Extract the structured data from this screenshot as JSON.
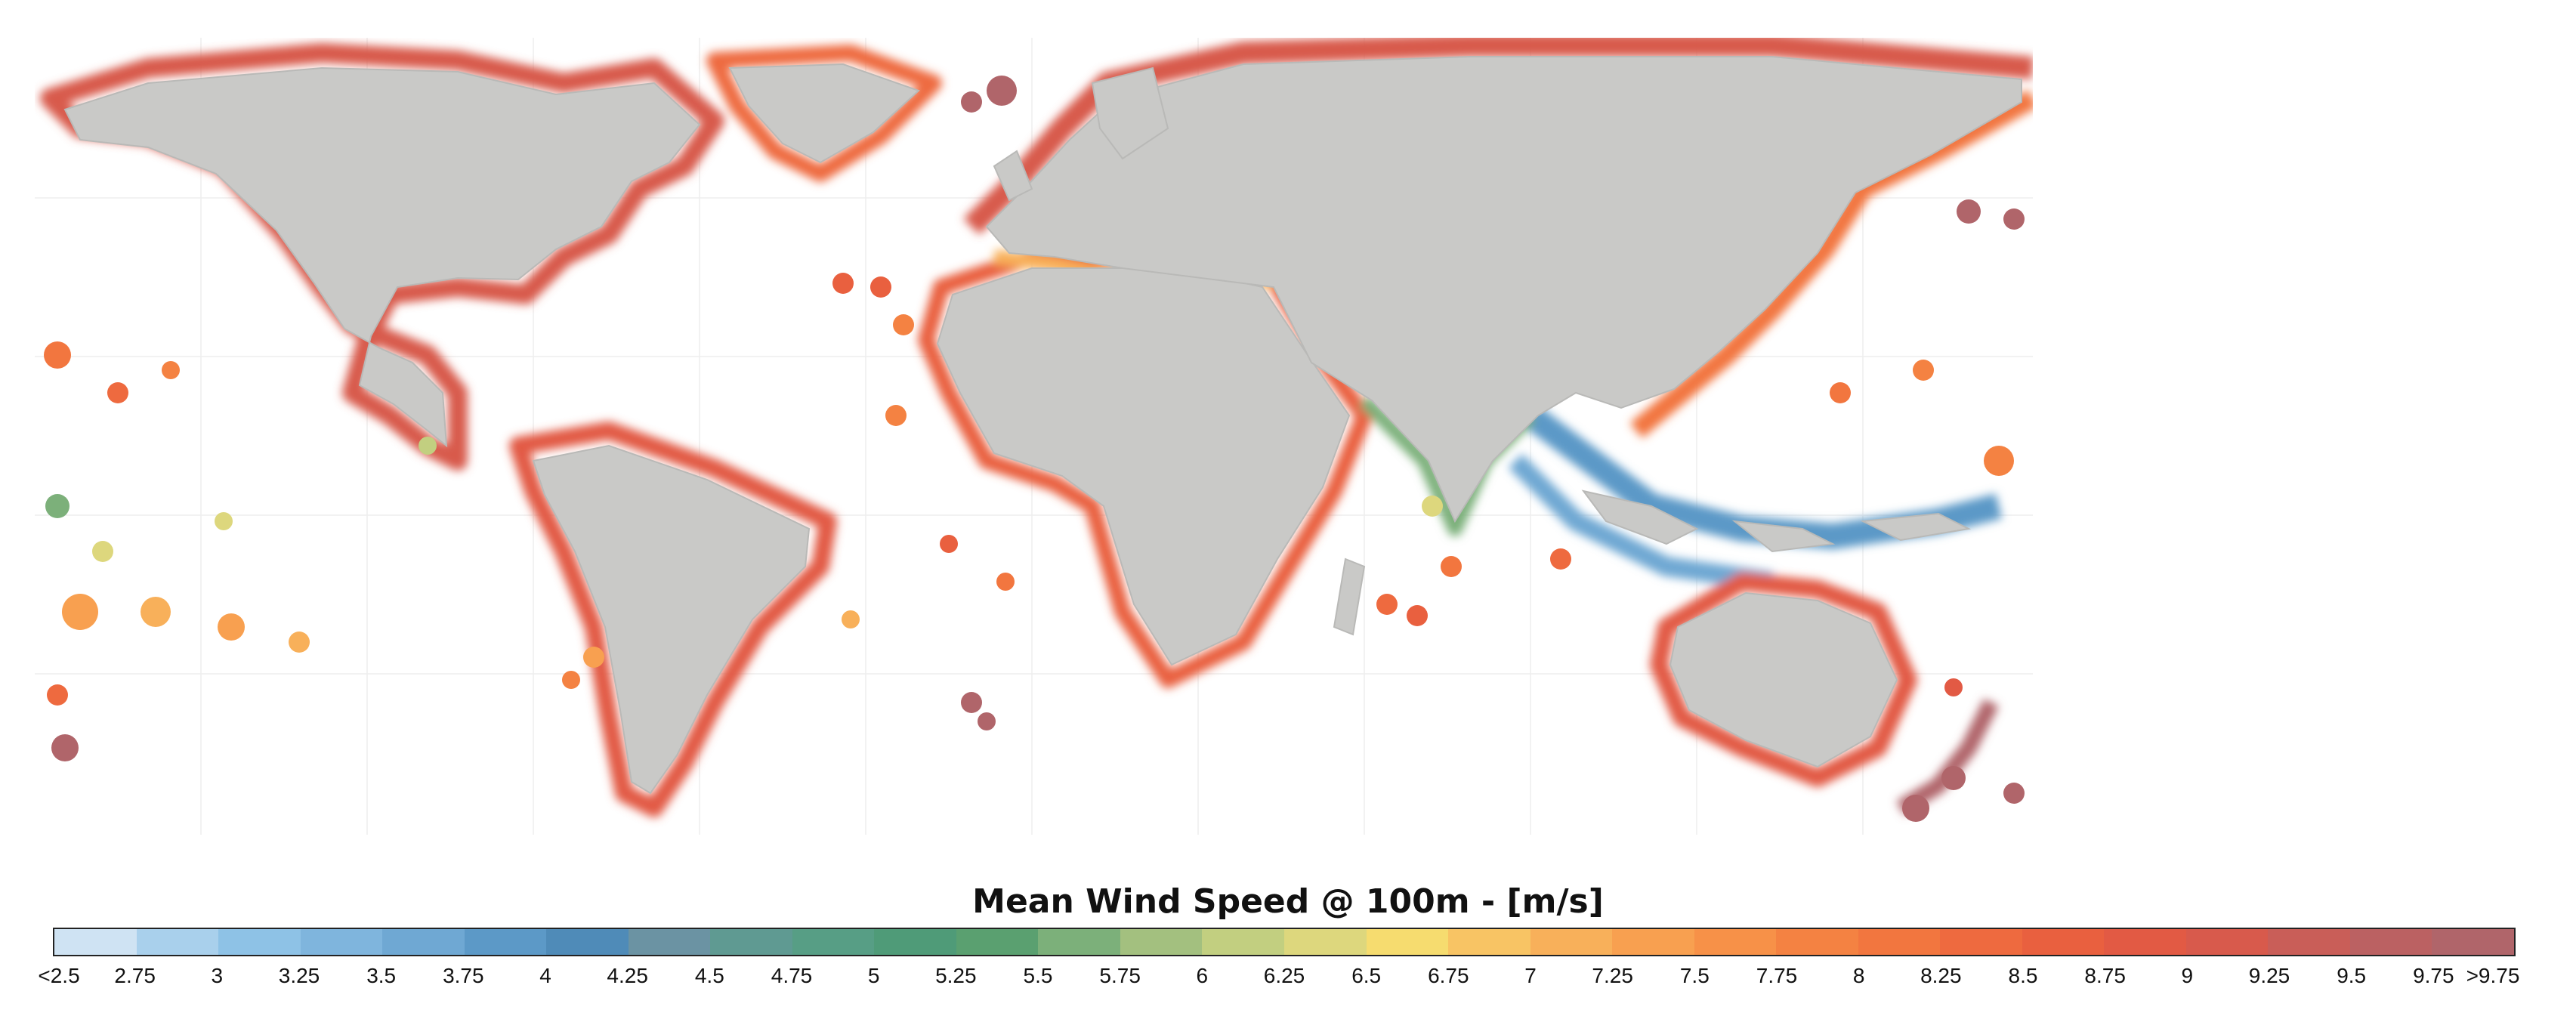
{
  "legend": {
    "title": "Mean Wind Speed @ 100m - [m/s]",
    "ticks": [
      "<2.5",
      "2.75",
      "3",
      "3.25",
      "3.5",
      "3.75",
      "4",
      "4.25",
      "4.5",
      "4.75",
      "5",
      "5.25",
      "5.5",
      "5.75",
      "6",
      "6.25",
      "6.5",
      "6.75",
      "7",
      "7.25",
      "7.5",
      "7.75",
      "8",
      "8.25",
      "8.5",
      "8.75",
      "9",
      "9.25",
      "9.5",
      "9.75",
      ">9.75"
    ],
    "colors": [
      "#cfe3f3",
      "#a9d0ec",
      "#8ec2e6",
      "#7fb5dd",
      "#6fa8d3",
      "#5c99c7",
      "#4f8bb8",
      "#6b93a3",
      "#5f9a92",
      "#579e85",
      "#4f9b78",
      "#5aa070",
      "#7cb07a",
      "#a3c07f",
      "#c2cf80",
      "#ddd77d",
      "#f6dc6f",
      "#f8c464",
      "#f8b05a",
      "#f8a050",
      "#f79148",
      "#f48242",
      "#f2763f",
      "#ee6a3f",
      "#e9603f",
      "#e25a44",
      "#d85a4c",
      "#c95e58",
      "#bb6162",
      "#b0656a"
    ]
  },
  "map": {
    "land_color": "#c9c9c7",
    "ocean_color": "#ffffff",
    "accent_offshore_colors": {
      "high": "#c95e58",
      "mid": "#f2763f",
      "low": "#5c99c7"
    }
  }
}
